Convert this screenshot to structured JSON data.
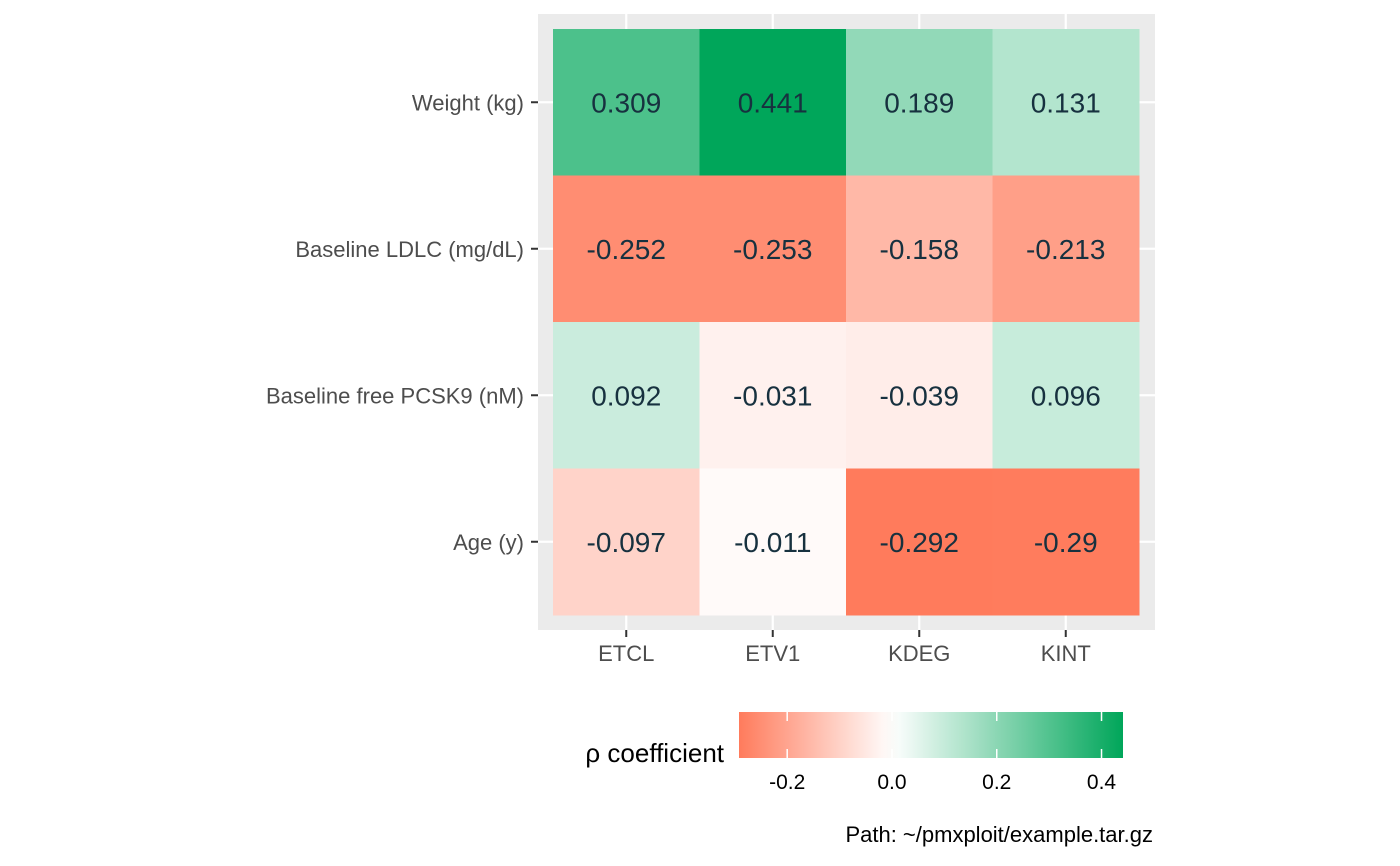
{
  "chart_data": {
    "type": "heatmap",
    "x_categories": [
      "ETCL",
      "ETV1",
      "KDEG",
      "KINT"
    ],
    "y_categories": [
      "Weight (kg)",
      "Baseline LDLC (mg/dL)",
      "Baseline free PCSK9 (nM)",
      "Age (y)"
    ],
    "values": [
      [
        0.309,
        0.441,
        0.189,
        0.131
      ],
      [
        -0.252,
        -0.253,
        -0.158,
        -0.213
      ],
      [
        0.092,
        -0.031,
        -0.039,
        0.096
      ],
      [
        -0.097,
        -0.011,
        -0.292,
        -0.29
      ]
    ],
    "labels": [
      [
        "0.309",
        "0.441",
        "0.189",
        "0.131"
      ],
      [
        "-0.252",
        "-0.253",
        "-0.158",
        "-0.213"
      ],
      [
        "0.092",
        "-0.031",
        "-0.039",
        "0.096"
      ],
      [
        "-0.097",
        "-0.011",
        "-0.292",
        "-0.29"
      ]
    ],
    "legend": {
      "title": "ρ coefficient",
      "position": "bottom",
      "range": [
        -0.292,
        0.441
      ],
      "ticks": [
        -0.2,
        0.0,
        0.2,
        0.4
      ],
      "tick_labels": [
        "-0.2",
        "0.0",
        "0.2",
        "0.4"
      ],
      "low_color": "#ff7b5c",
      "mid_color": "#ffffff",
      "high_color": "#00a65a"
    },
    "grid": true,
    "panel_background": "#ebebeb"
  },
  "caption": "Path: ~/pmxploit/example.tar.gz"
}
